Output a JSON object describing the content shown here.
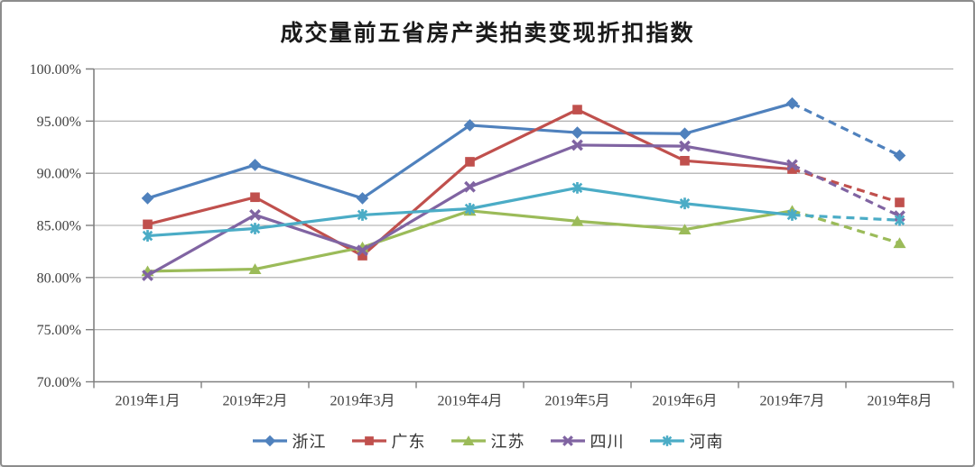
{
  "chart_data": {
    "type": "line",
    "title": "成交量前五省房产类拍卖变现折扣指数",
    "categories": [
      "2019年1月",
      "2019年2月",
      "2019年3月",
      "2019年4月",
      "2019年5月",
      "2019年6月",
      "2019年7月",
      "2019年8月"
    ],
    "series": [
      {
        "name": "浙江",
        "color": "#4F81BD",
        "marker": "diamond",
        "values": [
          87.6,
          90.8,
          87.6,
          94.6,
          93.9,
          93.8,
          96.7,
          91.7
        ],
        "dashed_from_index": 6
      },
      {
        "name": "广东",
        "color": "#C0504D",
        "marker": "square",
        "values": [
          85.1,
          87.7,
          82.1,
          91.1,
          96.1,
          91.2,
          90.4,
          87.2
        ],
        "dashed_from_index": 6
      },
      {
        "name": "江苏",
        "color": "#9BBB59",
        "marker": "triangle",
        "values": [
          80.6,
          80.8,
          82.9,
          86.4,
          85.4,
          84.6,
          86.4,
          83.3
        ],
        "dashed_from_index": 6
      },
      {
        "name": "四川",
        "color": "#8064A2",
        "marker": "x",
        "values": [
          80.2,
          86.0,
          82.6,
          88.7,
          92.7,
          92.6,
          90.8,
          85.9
        ],
        "dashed_from_index": 6
      },
      {
        "name": "河南",
        "color": "#4BACC6",
        "marker": "asterisk",
        "values": [
          84.0,
          84.7,
          86.0,
          86.6,
          88.6,
          87.1,
          86.0,
          85.5
        ],
        "dashed_from_index": 6
      }
    ],
    "ylim": [
      70,
      100
    ],
    "y_ticks": [
      100,
      95,
      90,
      85,
      80,
      75,
      70
    ],
    "y_tick_labels": [
      "100.00%",
      "95.00%",
      "90.00%",
      "85.00%",
      "80.00%",
      "75.00%",
      "70.00%"
    ],
    "grid": "horizontal-only",
    "legend_position": "bottom",
    "line_style_note": "solid Jan-Jul, dashed Jul-Aug (all series)",
    "styles": {
      "grid_color": "#A6A6A6",
      "axis_color": "#808080",
      "text_color": "#404040",
      "background": "#FFFFFF",
      "frame_border": "#8C8C8C"
    }
  }
}
